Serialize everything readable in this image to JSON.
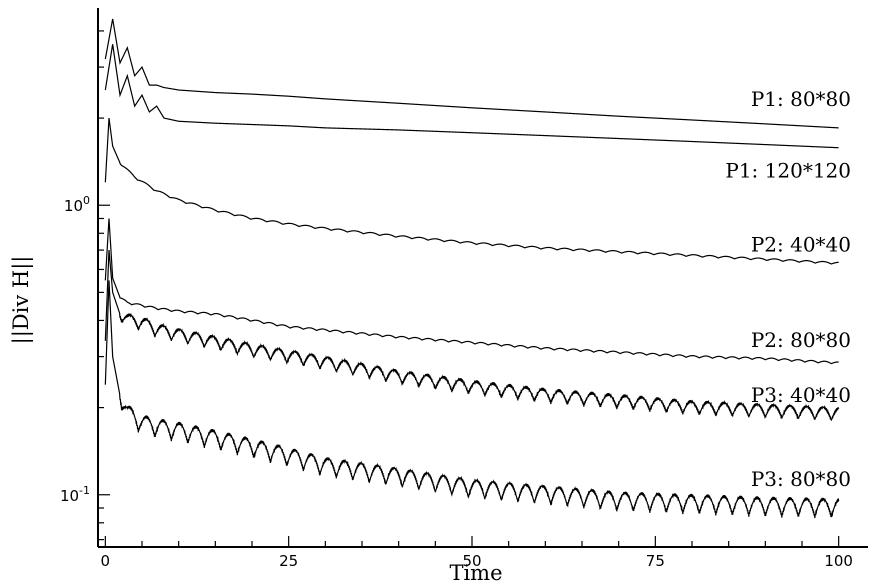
{
  "chart_data": {
    "type": "line",
    "title": "",
    "xlabel": "Time",
    "ylabel": "||Div H||",
    "xlim": [
      -1,
      104
    ],
    "ylim": [
      0.066,
      4.8
    ],
    "yscale": "log",
    "grid": false,
    "x_ticks": [
      0,
      25,
      50,
      75,
      100
    ],
    "y_ticks": [
      {
        "value": 1.0,
        "label": "10",
        "exponent": "0"
      },
      {
        "value": 0.1,
        "label": "10",
        "exponent": "-1"
      }
    ],
    "series": [
      {
        "name": "P1: 80*80",
        "x": [
          0,
          1,
          2,
          3,
          4,
          5,
          6,
          7,
          8,
          10,
          15,
          20,
          25,
          30,
          40,
          50,
          60,
          70,
          80,
          90,
          100
        ],
        "y": [
          3.2,
          4.4,
          3.1,
          3.5,
          2.8,
          3.0,
          2.6,
          2.6,
          2.55,
          2.5,
          2.45,
          2.42,
          2.38,
          2.33,
          2.25,
          2.17,
          2.1,
          2.03,
          1.97,
          1.91,
          1.85
        ],
        "osc_amp": 0,
        "osc_period": 1
      },
      {
        "name": "P1: 120*120",
        "x": [
          0,
          1,
          2,
          3,
          4,
          5,
          6,
          7,
          8,
          10,
          15,
          20,
          25,
          30,
          40,
          50,
          60,
          70,
          80,
          90,
          100
        ],
        "y": [
          2.5,
          3.6,
          2.4,
          2.8,
          2.2,
          2.4,
          2.1,
          2.2,
          2.0,
          1.95,
          1.92,
          1.9,
          1.88,
          1.85,
          1.82,
          1.78,
          1.74,
          1.7,
          1.66,
          1.62,
          1.58
        ],
        "osc_amp": 0,
        "osc_period": 1
      },
      {
        "name": "P2: 40*40",
        "x": [
          0,
          0.5,
          1,
          2,
          4,
          7,
          10,
          15,
          20,
          25,
          30,
          40,
          50,
          60,
          70,
          80,
          90,
          100
        ],
        "y": [
          1.2,
          2.0,
          1.6,
          1.4,
          1.25,
          1.12,
          1.04,
          0.96,
          0.9,
          0.86,
          0.83,
          0.78,
          0.74,
          0.71,
          0.69,
          0.67,
          0.65,
          0.63
        ],
        "osc_amp": 0.008,
        "osc_period": 2.2
      },
      {
        "name": "P2: 80*80",
        "x": [
          0,
          0.5,
          1,
          2,
          3,
          5,
          7,
          10,
          15,
          20,
          25,
          30,
          40,
          50,
          60,
          70,
          80,
          90,
          100
        ],
        "y": [
          0.55,
          0.9,
          0.56,
          0.48,
          0.46,
          0.45,
          0.44,
          0.43,
          0.42,
          0.4,
          0.38,
          0.37,
          0.35,
          0.335,
          0.32,
          0.31,
          0.3,
          0.295,
          0.285
        ],
        "osc_amp": 0.008,
        "osc_period": 1.8
      },
      {
        "name": "P3: 40*40",
        "x": [
          0,
          0.5,
          1,
          2,
          3,
          5,
          7,
          10,
          15,
          20,
          25,
          30,
          40,
          50,
          60,
          70,
          80,
          90,
          100
        ],
        "y": [
          0.34,
          0.7,
          0.5,
          0.42,
          0.4,
          0.39,
          0.37,
          0.355,
          0.335,
          0.315,
          0.3,
          0.285,
          0.255,
          0.235,
          0.22,
          0.21,
          0.2,
          0.195,
          0.19
        ],
        "osc_amp": 0.05,
        "osc_period": 2.25
      },
      {
        "name": "P3: 80*80",
        "x": [
          0,
          0.5,
          1,
          2,
          3,
          5,
          7,
          10,
          15,
          20,
          25,
          30,
          40,
          50,
          60,
          70,
          80,
          90,
          100
        ],
        "y": [
          0.24,
          0.55,
          0.3,
          0.22,
          0.19,
          0.175,
          0.17,
          0.165,
          0.155,
          0.145,
          0.135,
          0.125,
          0.115,
          0.105,
          0.1,
          0.095,
          0.093,
          0.091,
          0.09
        ],
        "osc_amp": 0.07,
        "osc_period": 2.25
      }
    ],
    "label_positions": "right of each curve"
  }
}
